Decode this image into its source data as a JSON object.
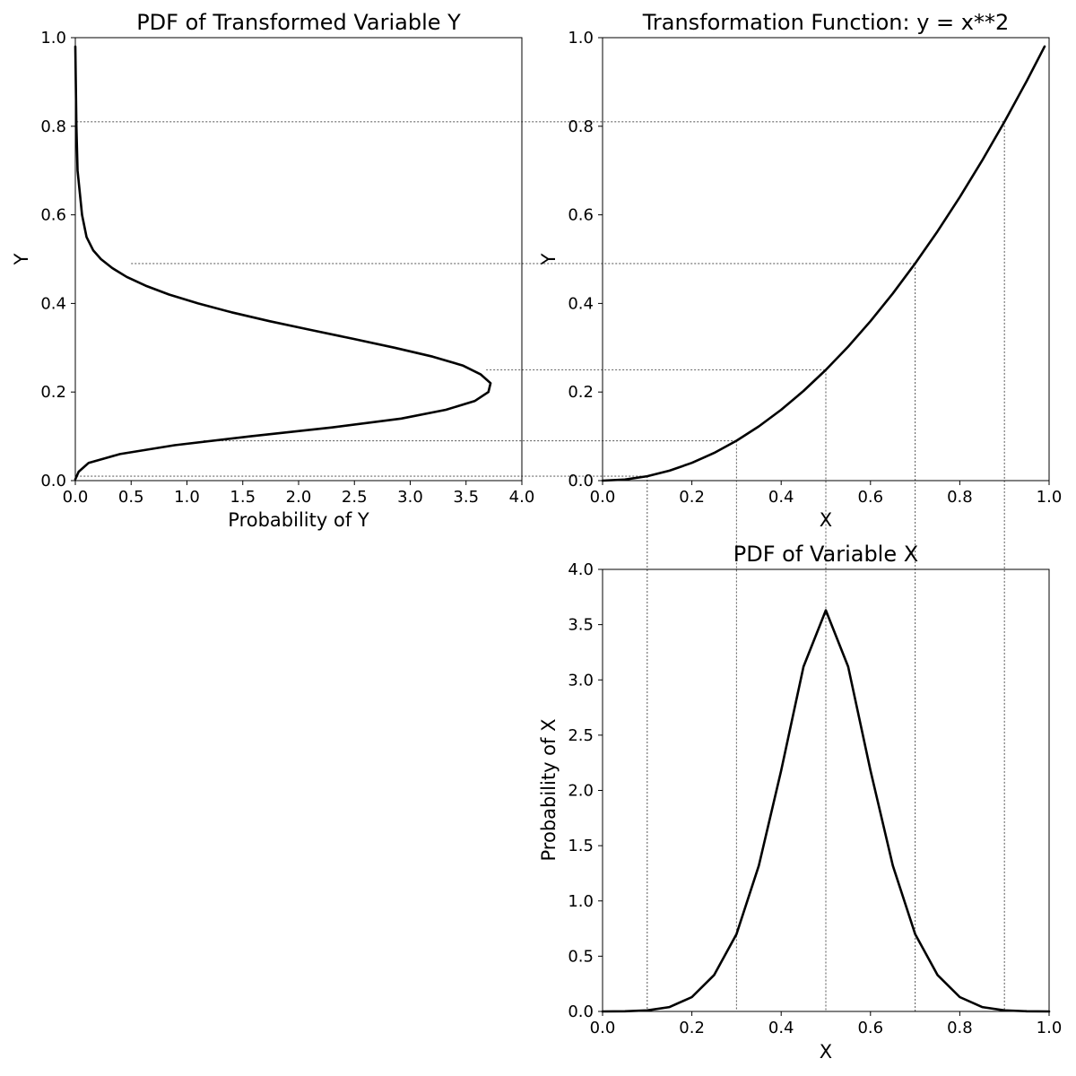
{
  "chart_data": [
    {
      "id": "pdf_y",
      "type": "line",
      "title": "PDF of Transformed Variable Y",
      "xlabel": "Probability of Y",
      "ylabel": "Y",
      "xlim": [
        0,
        4
      ],
      "ylim": [
        0,
        1
      ],
      "xticks": [
        "0.0",
        "0.5",
        "1.0",
        "1.5",
        "2.0",
        "2.5",
        "3.0",
        "3.5",
        "4.0"
      ],
      "yticks": [
        "0.0",
        "0.2",
        "0.4",
        "0.6",
        "0.8",
        "1.0"
      ],
      "grid": false,
      "series": [
        {
          "x": [
            0.0,
            0.03,
            0.12,
            0.4,
            0.89,
            1.57,
            2.3,
            2.92,
            3.32,
            3.58,
            3.7,
            3.72,
            3.63,
            3.47,
            3.2,
            2.86,
            2.49,
            2.11,
            1.74,
            1.4,
            1.1,
            0.84,
            0.63,
            0.46,
            0.33,
            0.23,
            0.16,
            0.1,
            0.06,
            0.04,
            0.02,
            0.01,
            0.0
          ],
          "y": [
            0.003,
            0.02,
            0.04,
            0.06,
            0.08,
            0.1,
            0.12,
            0.14,
            0.16,
            0.18,
            0.2,
            0.22,
            0.24,
            0.26,
            0.28,
            0.3,
            0.32,
            0.34,
            0.36,
            0.38,
            0.4,
            0.42,
            0.44,
            0.46,
            0.48,
            0.5,
            0.52,
            0.55,
            0.6,
            0.65,
            0.7,
            0.8,
            0.98
          ]
        }
      ]
    },
    {
      "id": "transform",
      "type": "line",
      "title": "Transformation Function: y = x**2",
      "xlabel": "X",
      "ylabel": "Y",
      "xlim": [
        0,
        1
      ],
      "ylim": [
        0,
        1
      ],
      "xticks": [
        "0.0",
        "0.2",
        "0.4",
        "0.6",
        "0.8",
        "1.0"
      ],
      "yticks": [
        "0.0",
        "0.2",
        "0.4",
        "0.6",
        "0.8",
        "1.0"
      ],
      "grid": false,
      "series": [
        {
          "x": [
            0.0,
            0.05,
            0.1,
            0.15,
            0.2,
            0.25,
            0.3,
            0.35,
            0.4,
            0.45,
            0.5,
            0.55,
            0.6,
            0.65,
            0.7,
            0.75,
            0.8,
            0.85,
            0.9,
            0.95,
            0.99
          ],
          "y": [
            0.0,
            0.0025,
            0.01,
            0.0225,
            0.04,
            0.0625,
            0.09,
            0.1225,
            0.16,
            0.2025,
            0.25,
            0.3025,
            0.36,
            0.4225,
            0.49,
            0.5625,
            0.64,
            0.7225,
            0.81,
            0.9025,
            0.9801
          ]
        }
      ]
    },
    {
      "id": "pdf_x",
      "type": "line",
      "title": "PDF of Variable X",
      "xlabel": "X",
      "ylabel": "Probability of X",
      "xlim": [
        0,
        1
      ],
      "ylim": [
        0,
        4
      ],
      "xticks": [
        "0.0",
        "0.2",
        "0.4",
        "0.6",
        "0.8",
        "1.0"
      ],
      "yticks": [
        "0.0",
        "0.5",
        "1.0",
        "1.5",
        "2.0",
        "2.5",
        "3.0",
        "3.5",
        "4.0"
      ],
      "grid": false,
      "series": [
        {
          "x": [
            0.0,
            0.05,
            0.1,
            0.15,
            0.2,
            0.25,
            0.3,
            0.35,
            0.4,
            0.45,
            0.5,
            0.55,
            0.6,
            0.65,
            0.7,
            0.75,
            0.8,
            0.85,
            0.9,
            0.95,
            1.0
          ],
          "y": [
            0.0,
            0.002,
            0.01,
            0.04,
            0.13,
            0.33,
            0.7,
            1.32,
            2.18,
            3.12,
            3.63,
            3.12,
            2.18,
            1.32,
            0.7,
            0.33,
            0.13,
            0.04,
            0.01,
            0.002,
            0.0
          ]
        }
      ]
    }
  ],
  "guides": {
    "x_values": [
      0.1,
      0.3,
      0.5,
      0.7,
      0.9
    ],
    "y_values": [
      0.01,
      0.09,
      0.25,
      0.49,
      0.81
    ],
    "pdf_y_at_guides": [
      0.01,
      1.15,
      3.68,
      0.5,
      0.01
    ]
  }
}
